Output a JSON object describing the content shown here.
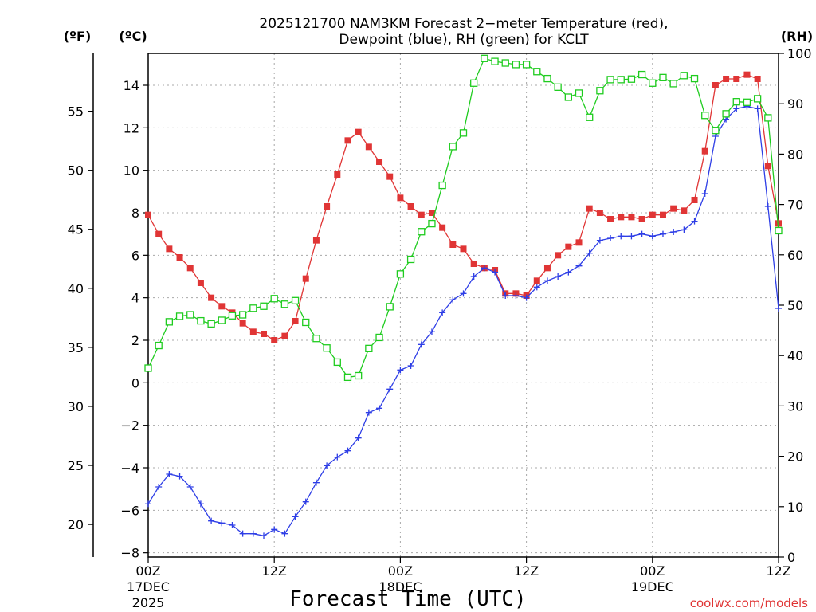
{
  "chart_data": {
    "type": "line",
    "title_line1": "2025121700 NAM3KM Forecast 2−meter Temperature (red),",
    "title_line2": "Dewpoint (blue), RH (green) for KCLT",
    "xlabel": "Forecast Time (UTC)",
    "credit": "coolwx.com/models",
    "units": {
      "fahrenheit": "(ºF)",
      "celsius": "(ºC)",
      "rh": "(RH)"
    },
    "x_range_hours": [
      0,
      60
    ],
    "celsius_axis": {
      "range": [
        -8.2,
        15.5
      ],
      "ticks": [
        "−8",
        "−6",
        "−4",
        "−2",
        "0",
        "2",
        "4",
        "6",
        "8",
        "10",
        "12",
        "14"
      ],
      "values": [
        -8,
        -6,
        -4,
        -2,
        0,
        2,
        4,
        6,
        8,
        10,
        12,
        14
      ]
    },
    "fahrenheit_axis": {
      "ticks": [
        "20",
        "25",
        "30",
        "35",
        "40",
        "45",
        "50",
        "55"
      ],
      "values": [
        20,
        25,
        30,
        35,
        40,
        45,
        50,
        55
      ]
    },
    "rh_axis": {
      "range": [
        0,
        100
      ],
      "ticks": [
        "0",
        "10",
        "20",
        "30",
        "40",
        "50",
        "60",
        "70",
        "80",
        "90",
        "100"
      ],
      "values": [
        0,
        10,
        20,
        30,
        40,
        50,
        60,
        70,
        80,
        90,
        100
      ]
    },
    "x_ticks": [
      {
        "hour": 0,
        "label": "00Z",
        "sub1": "17DEC",
        "sub2": "2025"
      },
      {
        "hour": 12,
        "label": "12Z",
        "sub1": "",
        "sub2": ""
      },
      {
        "hour": 24,
        "label": "00Z",
        "sub1": "18DEC",
        "sub2": ""
      },
      {
        "hour": 36,
        "label": "12Z",
        "sub1": "",
        "sub2": ""
      },
      {
        "hour": 48,
        "label": "00Z",
        "sub1": "19DEC",
        "sub2": ""
      },
      {
        "hour": 60,
        "label": "12Z",
        "sub1": "",
        "sub2": ""
      }
    ],
    "hours": [
      0,
      1,
      2,
      3,
      4,
      5,
      6,
      7,
      8,
      9,
      10,
      11,
      12,
      13,
      14,
      15,
      16,
      17,
      18,
      19,
      20,
      21,
      22,
      23,
      24,
      25,
      26,
      27,
      28,
      29,
      30,
      31,
      32,
      33,
      34,
      35,
      36,
      37,
      38,
      39,
      40,
      41,
      42,
      43,
      44,
      45,
      46,
      47,
      48,
      49,
      50,
      51,
      52,
      53,
      54,
      55,
      56,
      57,
      58,
      59,
      60
    ],
    "series": [
      {
        "name": "Temperature",
        "unit": "C",
        "color": "#e03535",
        "marker": "filled-square",
        "values": [
          7.9,
          7.0,
          6.3,
          5.9,
          5.4,
          4.7,
          4.0,
          3.6,
          3.3,
          2.8,
          2.4,
          2.3,
          2.0,
          2.2,
          2.9,
          4.9,
          6.7,
          8.3,
          9.8,
          11.4,
          11.8,
          11.1,
          10.4,
          9.7,
          8.7,
          8.3,
          7.9,
          8.0,
          7.3,
          6.5,
          6.3,
          5.6,
          5.4,
          5.3,
          4.2,
          4.2,
          4.1,
          4.8,
          5.4,
          6.0,
          6.4,
          6.6,
          8.2,
          8.0,
          7.7,
          7.8,
          7.8,
          7.7,
          7.9,
          7.9,
          8.2,
          8.1,
          8.6,
          10.9,
          14.0,
          14.3,
          14.3,
          14.5,
          14.3,
          10.2,
          7.5
        ]
      },
      {
        "name": "Dewpoint",
        "unit": "C",
        "color": "#2e3ee6",
        "marker": "plus",
        "values": [
          -5.7,
          -4.9,
          -4.3,
          -4.4,
          -4.9,
          -5.7,
          -6.5,
          -6.6,
          -6.7,
          -7.1,
          -7.1,
          -7.2,
          -6.9,
          -7.1,
          -6.3,
          -5.6,
          -4.7,
          -3.9,
          -3.5,
          -3.2,
          -2.6,
          -1.4,
          -1.2,
          -0.3,
          0.6,
          0.8,
          1.8,
          2.4,
          3.3,
          3.9,
          4.2,
          5.0,
          5.4,
          5.2,
          4.1,
          4.1,
          4.0,
          4.5,
          4.8,
          5.0,
          5.2,
          5.5,
          6.1,
          6.7,
          6.8,
          6.9,
          6.9,
          7.0,
          6.9,
          7.0,
          7.1,
          7.2,
          7.6,
          8.9,
          11.6,
          12.4,
          12.9,
          13.0,
          12.9,
          8.3,
          3.5
        ]
      },
      {
        "name": "RH",
        "unit": "%",
        "color": "#1fcc1f",
        "marker": "open-square",
        "values": [
          37.5,
          42,
          46.7,
          47.8,
          48.1,
          46.9,
          46.3,
          47.0,
          47.9,
          48.1,
          49.4,
          49.8,
          51.3,
          50.2,
          50.9,
          46.6,
          43.4,
          41.5,
          38.7,
          35.7,
          36.0,
          41.4,
          43.6,
          49.7,
          56.2,
          59.1,
          64.6,
          66.2,
          73.8,
          81.5,
          84.2,
          94.1,
          99.0,
          98.4,
          98.1,
          97.8,
          97.8,
          96.4,
          95.0,
          93.3,
          91.3,
          92.1,
          87.3,
          92.6,
          94.8,
          94.8,
          94.9,
          95.8,
          94.1,
          95.2,
          94.0,
          95.6,
          95.0,
          87.7,
          84.7,
          88.0,
          90.4,
          90.3,
          91.0,
          87.2,
          64.8
        ]
      }
    ]
  }
}
